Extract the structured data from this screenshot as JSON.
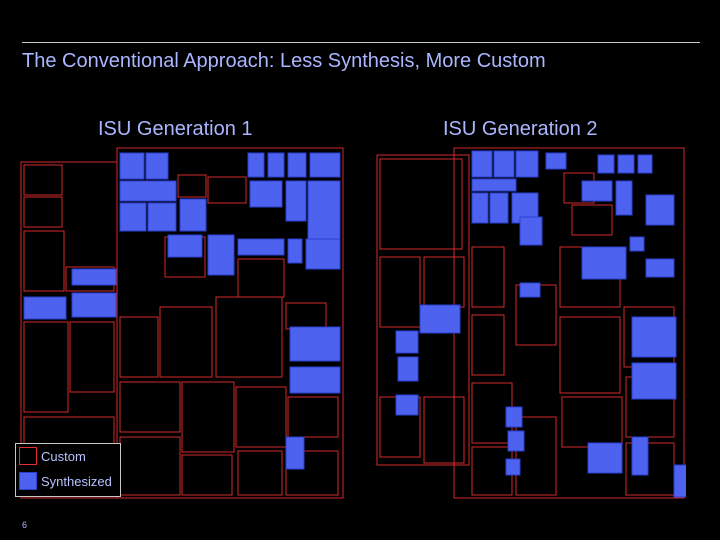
{
  "slide": {
    "title": "The Conventional Approach: Less Synthesis, More Custom",
    "page_number": "6"
  },
  "panels": [
    {
      "label": "ISU Generation 1"
    },
    {
      "label": "ISU Generation 2"
    }
  ],
  "legend": {
    "custom_label": "Custom",
    "synthesized_label": "Synthesized"
  },
  "colors": {
    "background": "#000000",
    "text": "#aab6ff",
    "custom_outline": "#e23030",
    "synthesized_fill": "#4d63f0"
  }
}
